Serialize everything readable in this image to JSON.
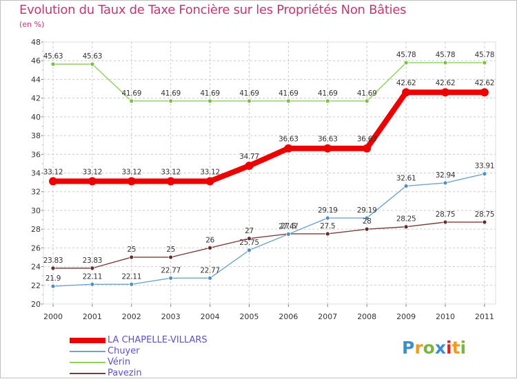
{
  "chart_data": {
    "type": "line",
    "title": "Evolution du Taux de Taxe Foncière sur les Propriétés Non Bâties",
    "unit_label": "(en %)",
    "xlabel": "",
    "ylabel": "",
    "ylim": [
      20,
      48
    ],
    "ytick_step": 2,
    "grid": true,
    "categories": [
      "2000",
      "2001",
      "2002",
      "2003",
      "2004",
      "2005",
      "2006",
      "2007",
      "2008",
      "2009",
      "2010",
      "2011"
    ],
    "series": [
      {
        "name": "Vérin",
        "color": "#8dcf5a",
        "marker": "#7bc043",
        "values": [
          45.63,
          45.63,
          41.69,
          41.69,
          41.69,
          41.69,
          41.69,
          41.69,
          41.69,
          45.78,
          45.78,
          45.78
        ],
        "labels": [
          "45.63",
          "45.63",
          "41.69",
          "41.69",
          "41.69",
          "41.69",
          "41.69",
          "41.69",
          "41.69",
          "45.78",
          "45.78",
          "45.78"
        ]
      },
      {
        "name": "LA CHAPELLE-VILLARS",
        "color": "#ee0000",
        "marker": "#ee0000",
        "values": [
          33.12,
          33.12,
          33.12,
          33.12,
          33.12,
          34.77,
          36.63,
          36.63,
          36.63,
          42.62,
          42.62,
          42.62
        ],
        "labels": [
          "33.12",
          "33.12",
          "33.12",
          "33.12",
          "33.12",
          "34.77",
          "36.63",
          "36.63",
          "36.63",
          "42.62",
          "42.62",
          "42.62"
        ]
      },
      {
        "name": "Chuyer",
        "color": "#6ea3cf",
        "marker": "#4f8fc4",
        "values": [
          21.9,
          22.11,
          22.11,
          22.77,
          22.77,
          25.75,
          27.47,
          29.19,
          29.19,
          32.61,
          32.94,
          33.91
        ],
        "labels": [
          "21.9",
          "22.11",
          "22.11",
          "22.77",
          "22.77",
          "25.75",
          "27.47",
          "29.19",
          "29.19",
          "32.61",
          "32.94",
          "33.91"
        ]
      },
      {
        "name": "Pavezin",
        "color": "#7b3b3b",
        "marker": "#6b2a2a",
        "values": [
          23.83,
          23.83,
          25,
          25,
          26,
          27,
          27.5,
          27.5,
          28,
          28.25,
          28.75,
          28.75
        ],
        "labels": [
          "23.83",
          "23.83",
          "25",
          "25",
          "26",
          "27",
          "27.5",
          "27.5",
          "28",
          "28.25",
          "28.75",
          "28.75"
        ]
      }
    ],
    "legend": {
      "placement": "bottom-left",
      "entries": [
        "LA CHAPELLE-VILLARS",
        "Chuyer",
        "Vérin",
        "Pavezin"
      ]
    }
  },
  "logo": {
    "text": "Proxiti",
    "letters": [
      "P",
      "r",
      "o",
      "x",
      "i",
      "t",
      "i"
    ]
  }
}
